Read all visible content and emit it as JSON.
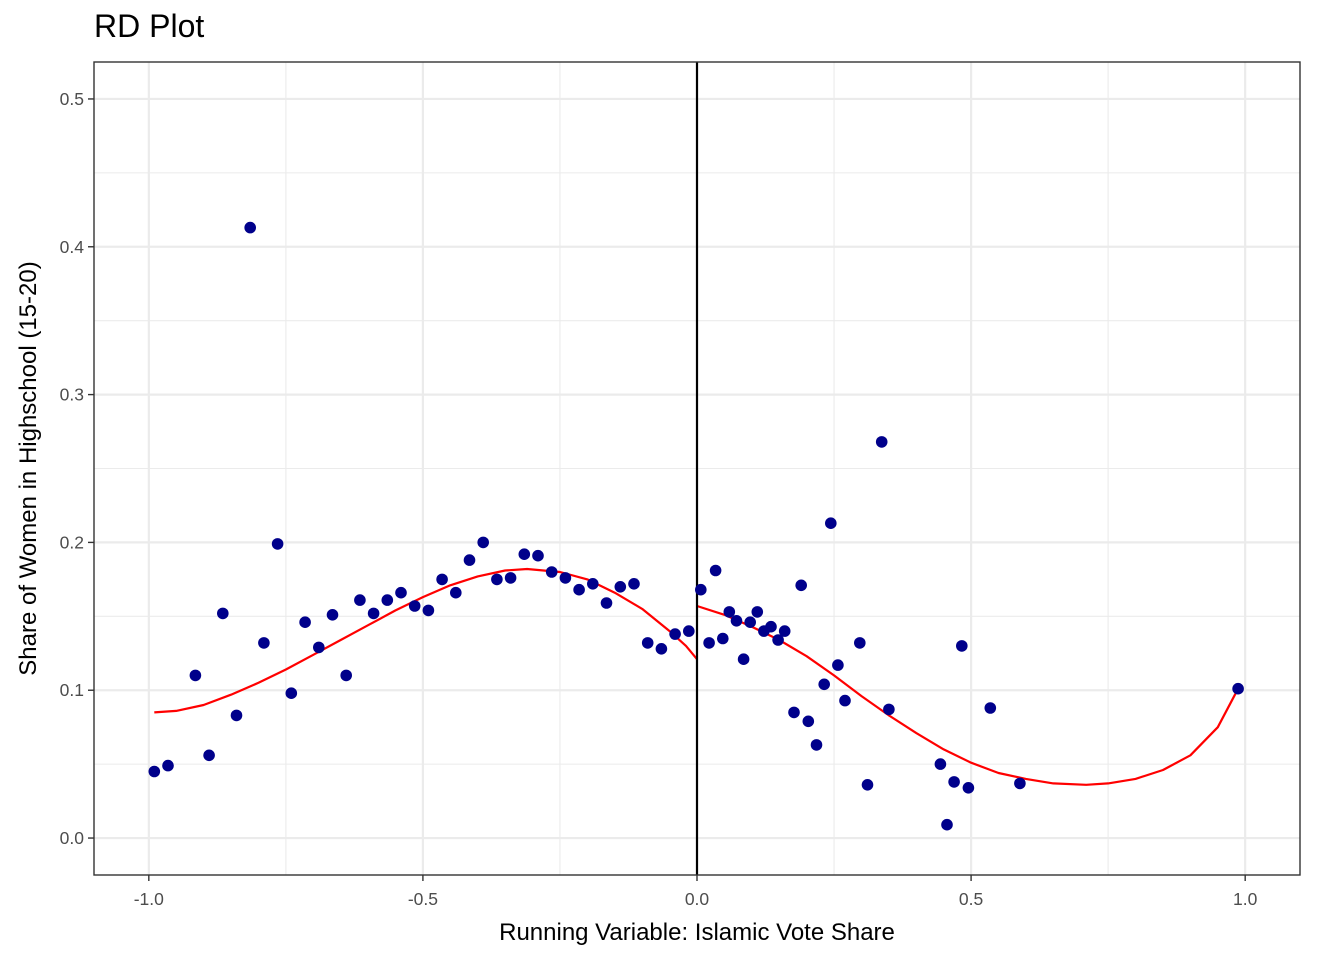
{
  "chart_data": {
    "type": "scatter",
    "title": "RD Plot",
    "xlabel": "Running Variable: Islamic Vote Share",
    "ylabel": "Share of Women in Highschool (15-20)",
    "xlim": [
      -1.1,
      1.1
    ],
    "ylim": [
      -0.025,
      0.525
    ],
    "x_ticks": [
      -1.0,
      -0.5,
      0.0,
      0.5,
      1.0
    ],
    "x_tick_labels": [
      "-1.0",
      "-0.5",
      "0.0",
      "0.5",
      "1.0"
    ],
    "y_ticks": [
      0.0,
      0.1,
      0.2,
      0.3,
      0.4,
      0.5
    ],
    "y_tick_labels": [
      "0.0",
      "0.1",
      "0.2",
      "0.3",
      "0.4",
      "0.5"
    ],
    "grid": true,
    "cutoff": 0.0,
    "colors": {
      "points": "#00008b",
      "fit": "#ff0000",
      "cutoff": "#000000",
      "grid": "#ebebeb",
      "panel_border": "#333333"
    },
    "points": [
      {
        "x": -0.99,
        "y": 0.045
      },
      {
        "x": -0.965,
        "y": 0.049
      },
      {
        "x": -0.915,
        "y": 0.11
      },
      {
        "x": -0.89,
        "y": 0.056
      },
      {
        "x": -0.865,
        "y": 0.152
      },
      {
        "x": -0.84,
        "y": 0.083
      },
      {
        "x": -0.815,
        "y": 0.413
      },
      {
        "x": -0.79,
        "y": 0.132
      },
      {
        "x": -0.765,
        "y": 0.199
      },
      {
        "x": -0.74,
        "y": 0.098
      },
      {
        "x": -0.715,
        "y": 0.146
      },
      {
        "x": -0.69,
        "y": 0.129
      },
      {
        "x": -0.665,
        "y": 0.151
      },
      {
        "x": -0.64,
        "y": 0.11
      },
      {
        "x": -0.615,
        "y": 0.161
      },
      {
        "x": -0.59,
        "y": 0.152
      },
      {
        "x": -0.565,
        "y": 0.161
      },
      {
        "x": -0.54,
        "y": 0.166
      },
      {
        "x": -0.515,
        "y": 0.157
      },
      {
        "x": -0.49,
        "y": 0.154
      },
      {
        "x": -0.465,
        "y": 0.175
      },
      {
        "x": -0.44,
        "y": 0.166
      },
      {
        "x": -0.415,
        "y": 0.188
      },
      {
        "x": -0.39,
        "y": 0.2
      },
      {
        "x": -0.365,
        "y": 0.175
      },
      {
        "x": -0.34,
        "y": 0.176
      },
      {
        "x": -0.315,
        "y": 0.192
      },
      {
        "x": -0.29,
        "y": 0.191
      },
      {
        "x": -0.265,
        "y": 0.18
      },
      {
        "x": -0.24,
        "y": 0.176
      },
      {
        "x": -0.215,
        "y": 0.168
      },
      {
        "x": -0.19,
        "y": 0.172
      },
      {
        "x": -0.165,
        "y": 0.159
      },
      {
        "x": -0.14,
        "y": 0.17
      },
      {
        "x": -0.115,
        "y": 0.172
      },
      {
        "x": -0.09,
        "y": 0.132
      },
      {
        "x": -0.065,
        "y": 0.128
      },
      {
        "x": -0.04,
        "y": 0.138
      },
      {
        "x": -0.015,
        "y": 0.14
      },
      {
        "x": 0.007,
        "y": 0.168
      },
      {
        "x": 0.022,
        "y": 0.132
      },
      {
        "x": 0.034,
        "y": 0.181
      },
      {
        "x": 0.047,
        "y": 0.135
      },
      {
        "x": 0.059,
        "y": 0.153
      },
      {
        "x": 0.072,
        "y": 0.147
      },
      {
        "x": 0.085,
        "y": 0.121
      },
      {
        "x": 0.097,
        "y": 0.146
      },
      {
        "x": 0.11,
        "y": 0.153
      },
      {
        "x": 0.122,
        "y": 0.14
      },
      {
        "x": 0.135,
        "y": 0.143
      },
      {
        "x": 0.148,
        "y": 0.134
      },
      {
        "x": 0.16,
        "y": 0.14
      },
      {
        "x": 0.177,
        "y": 0.085
      },
      {
        "x": 0.19,
        "y": 0.171
      },
      {
        "x": 0.203,
        "y": 0.079
      },
      {
        "x": 0.218,
        "y": 0.063
      },
      {
        "x": 0.232,
        "y": 0.104
      },
      {
        "x": 0.244,
        "y": 0.213
      },
      {
        "x": 0.257,
        "y": 0.117
      },
      {
        "x": 0.27,
        "y": 0.093
      },
      {
        "x": 0.297,
        "y": 0.132
      },
      {
        "x": 0.311,
        "y": 0.036
      },
      {
        "x": 0.337,
        "y": 0.268
      },
      {
        "x": 0.35,
        "y": 0.087
      },
      {
        "x": 0.444,
        "y": 0.05
      },
      {
        "x": 0.456,
        "y": 0.009
      },
      {
        "x": 0.469,
        "y": 0.038
      },
      {
        "x": 0.483,
        "y": 0.13
      },
      {
        "x": 0.495,
        "y": 0.034
      },
      {
        "x": 0.535,
        "y": 0.088
      },
      {
        "x": 0.589,
        "y": 0.037
      },
      {
        "x": 0.987,
        "y": 0.101
      }
    ],
    "fit_left": [
      {
        "x": -0.99,
        "y": 0.085
      },
      {
        "x": -0.95,
        "y": 0.086
      },
      {
        "x": -0.9,
        "y": 0.09
      },
      {
        "x": -0.85,
        "y": 0.097
      },
      {
        "x": -0.8,
        "y": 0.105
      },
      {
        "x": -0.75,
        "y": 0.114
      },
      {
        "x": -0.7,
        "y": 0.124
      },
      {
        "x": -0.65,
        "y": 0.134
      },
      {
        "x": -0.6,
        "y": 0.144
      },
      {
        "x": -0.55,
        "y": 0.154
      },
      {
        "x": -0.5,
        "y": 0.163
      },
      {
        "x": -0.45,
        "y": 0.171
      },
      {
        "x": -0.4,
        "y": 0.177
      },
      {
        "x": -0.35,
        "y": 0.181
      },
      {
        "x": -0.31,
        "y": 0.182
      },
      {
        "x": -0.25,
        "y": 0.18
      },
      {
        "x": -0.2,
        "y": 0.175
      },
      {
        "x": -0.15,
        "y": 0.166
      },
      {
        "x": -0.1,
        "y": 0.155
      },
      {
        "x": -0.05,
        "y": 0.14
      },
      {
        "x": -0.02,
        "y": 0.13
      },
      {
        "x": 0.0,
        "y": 0.121
      }
    ],
    "fit_right": [
      {
        "x": 0.0,
        "y": 0.157
      },
      {
        "x": 0.05,
        "y": 0.151
      },
      {
        "x": 0.1,
        "y": 0.143
      },
      {
        "x": 0.15,
        "y": 0.134
      },
      {
        "x": 0.2,
        "y": 0.123
      },
      {
        "x": 0.25,
        "y": 0.11
      },
      {
        "x": 0.3,
        "y": 0.096
      },
      {
        "x": 0.35,
        "y": 0.083
      },
      {
        "x": 0.4,
        "y": 0.071
      },
      {
        "x": 0.45,
        "y": 0.06
      },
      {
        "x": 0.5,
        "y": 0.051
      },
      {
        "x": 0.55,
        "y": 0.044
      },
      {
        "x": 0.6,
        "y": 0.04
      },
      {
        "x": 0.65,
        "y": 0.037
      },
      {
        "x": 0.71,
        "y": 0.036
      },
      {
        "x": 0.75,
        "y": 0.037
      },
      {
        "x": 0.8,
        "y": 0.04
      },
      {
        "x": 0.85,
        "y": 0.046
      },
      {
        "x": 0.9,
        "y": 0.056
      },
      {
        "x": 0.95,
        "y": 0.075
      },
      {
        "x": 0.987,
        "y": 0.101
      }
    ]
  }
}
